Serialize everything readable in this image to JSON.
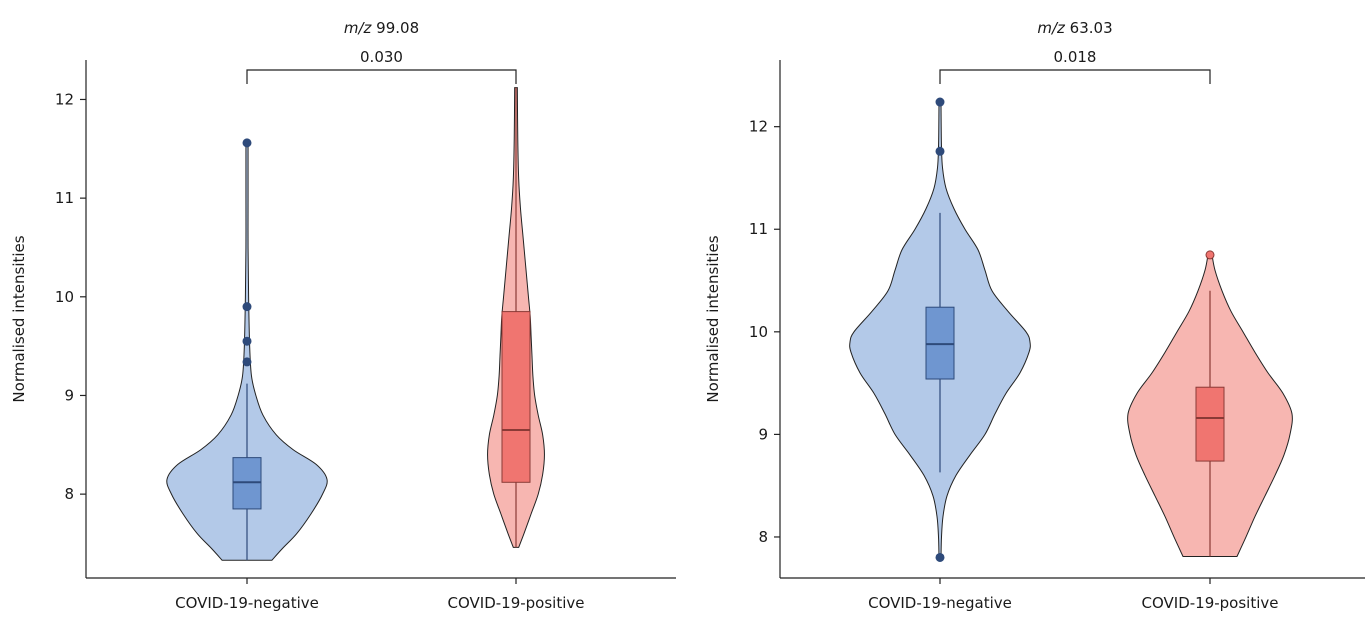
{
  "chart_data": [
    {
      "type": "violin",
      "title_prefix": "m/z",
      "title_value": "99.08",
      "ylabel": "Normalised intensities",
      "ylim": [
        7.15,
        12.4
      ],
      "yticks": [
        8,
        9,
        10,
        11,
        12
      ],
      "categories": [
        "COVID-19-negative",
        "COVID-19-positive"
      ],
      "comparison": {
        "from": 0,
        "to": 1,
        "p_value": "0.030"
      },
      "groups": [
        {
          "name": "COVID-19-negative",
          "fill": "#b3c9e8",
          "box_color": "#6f96d0",
          "line_color": "#2e4a7a",
          "q1": 7.85,
          "median": 8.12,
          "q3": 8.37,
          "whisker_low": 7.33,
          "whisker_high": 9.12,
          "outliers": [
            9.34,
            9.55,
            9.9,
            11.56
          ],
          "density": [
            [
              7.33,
              0.28
            ],
            [
              7.45,
              0.4
            ],
            [
              7.6,
              0.56
            ],
            [
              7.8,
              0.72
            ],
            [
              8.0,
              0.85
            ],
            [
              8.15,
              0.9
            ],
            [
              8.3,
              0.78
            ],
            [
              8.45,
              0.52
            ],
            [
              8.6,
              0.33
            ],
            [
              8.8,
              0.18
            ],
            [
              9.0,
              0.1
            ],
            [
              9.2,
              0.05
            ],
            [
              9.5,
              0.03
            ],
            [
              10.0,
              0.018
            ],
            [
              10.5,
              0.012
            ],
            [
              11.0,
              0.012
            ],
            [
              11.3,
              0.012
            ],
            [
              11.56,
              0.012
            ]
          ]
        },
        {
          "name": "COVID-19-positive",
          "fill": "#f7b6b1",
          "box_color": "#f07570",
          "line_color": "#8a3a36",
          "q1": 8.12,
          "median": 8.65,
          "q3": 9.85,
          "whisker_low": 7.46,
          "whisker_high": 12.12,
          "outliers": [],
          "density": [
            [
              7.46,
              0.03
            ],
            [
              7.6,
              0.09
            ],
            [
              7.8,
              0.17
            ],
            [
              8.0,
              0.25
            ],
            [
              8.2,
              0.3
            ],
            [
              8.4,
              0.32
            ],
            [
              8.6,
              0.3
            ],
            [
              8.8,
              0.25
            ],
            [
              9.0,
              0.21
            ],
            [
              9.2,
              0.19
            ],
            [
              9.4,
              0.18
            ],
            [
              9.6,
              0.17
            ],
            [
              9.8,
              0.16
            ],
            [
              10.0,
              0.14
            ],
            [
              10.3,
              0.11
            ],
            [
              10.6,
              0.08
            ],
            [
              10.9,
              0.05
            ],
            [
              11.2,
              0.03
            ],
            [
              11.6,
              0.02
            ],
            [
              12.12,
              0.015
            ]
          ]
        }
      ]
    },
    {
      "type": "violin",
      "title_prefix": "m/z",
      "title_value": "63.03",
      "ylabel": "Normalised intensities",
      "ylim": [
        7.6,
        12.65
      ],
      "yticks": [
        8,
        9,
        10,
        11,
        12
      ],
      "categories": [
        "COVID-19-negative",
        "COVID-19-positive"
      ],
      "comparison": {
        "from": 0,
        "to": 1,
        "p_value": "0.018"
      },
      "groups": [
        {
          "name": "COVID-19-negative",
          "fill": "#b3c9e8",
          "box_color": "#6f96d0",
          "line_color": "#2e4a7a",
          "q1": 9.54,
          "median": 9.88,
          "q3": 10.24,
          "whisker_low": 8.63,
          "whisker_high": 11.16,
          "outliers": [
            7.8,
            11.76,
            12.24
          ],
          "density": [
            [
              7.8,
              0.01
            ],
            [
              8.0,
              0.015
            ],
            [
              8.2,
              0.03
            ],
            [
              8.4,
              0.07
            ],
            [
              8.6,
              0.16
            ],
            [
              8.8,
              0.3
            ],
            [
              9.0,
              0.45
            ],
            [
              9.2,
              0.55
            ],
            [
              9.4,
              0.66
            ],
            [
              9.6,
              0.8
            ],
            [
              9.8,
              0.89
            ],
            [
              9.9,
              0.9
            ],
            [
              10.0,
              0.86
            ],
            [
              10.2,
              0.68
            ],
            [
              10.4,
              0.52
            ],
            [
              10.6,
              0.45
            ],
            [
              10.8,
              0.38
            ],
            [
              11.0,
              0.25
            ],
            [
              11.2,
              0.14
            ],
            [
              11.4,
              0.06
            ],
            [
              11.6,
              0.025
            ],
            [
              11.8,
              0.015
            ],
            [
              12.0,
              0.012
            ],
            [
              12.24,
              0.01
            ]
          ]
        },
        {
          "name": "COVID-19-positive",
          "fill": "#f7b6b1",
          "box_color": "#f07570",
          "line_color": "#8a3a36",
          "q1": 8.74,
          "median": 9.16,
          "q3": 9.46,
          "whisker_low": 7.81,
          "whisker_high": 10.4,
          "outliers": [
            10.75
          ],
          "density": [
            [
              7.81,
              0.27
            ],
            [
              8.0,
              0.36
            ],
            [
              8.2,
              0.45
            ],
            [
              8.4,
              0.55
            ],
            [
              8.6,
              0.65
            ],
            [
              8.8,
              0.74
            ],
            [
              9.0,
              0.8
            ],
            [
              9.2,
              0.82
            ],
            [
              9.4,
              0.73
            ],
            [
              9.6,
              0.58
            ],
            [
              9.8,
              0.45
            ],
            [
              10.0,
              0.33
            ],
            [
              10.2,
              0.21
            ],
            [
              10.4,
              0.12
            ],
            [
              10.6,
              0.05
            ],
            [
              10.75,
              0.02
            ]
          ]
        }
      ]
    }
  ]
}
